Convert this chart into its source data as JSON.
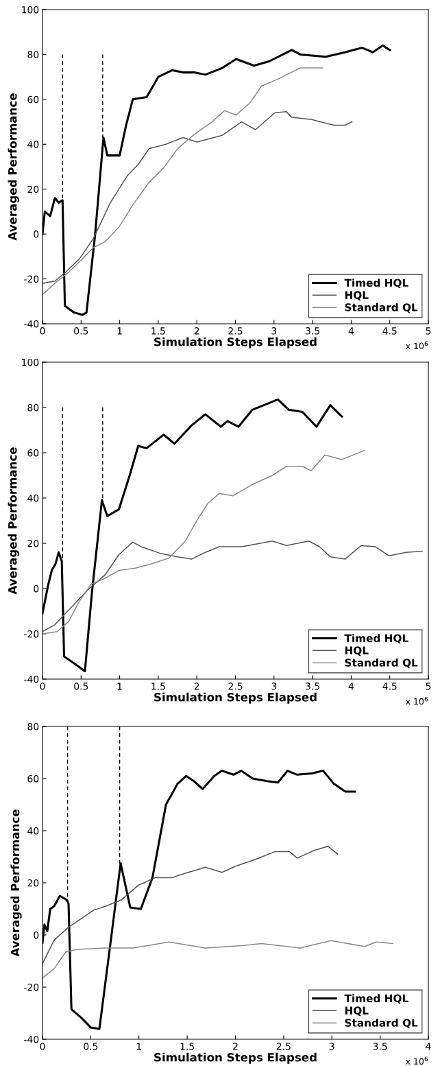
{
  "chart_data": [
    {
      "type": "line",
      "xlabel": "Simulation Steps Elapsed",
      "ylabel": "Averaged Performance",
      "annotations": [
        "x 10$^{6}$"
      ],
      "xlim": [
        0,
        5
      ],
      "xticks": [
        0,
        0.5,
        1,
        1.5,
        2,
        2.5,
        3,
        3.5,
        4,
        4.5,
        5
      ],
      "ylim": [
        -40,
        100
      ],
      "yticks": [
        -40,
        -20,
        0,
        20,
        40,
        60,
        80,
        100
      ],
      "grid": false,
      "legend": "bottom right",
      "marker": "none",
      "series": [
        {
          "name": "Timed HQL",
          "color": "#000000",
          "x": [
            0,
            0.03,
            0.1,
            0.16,
            0.21,
            0.26,
            0.29,
            0.41,
            0.52,
            0.57,
            0.68,
            0.79,
            0.84,
            0.92,
            1.0,
            1.08,
            1.17,
            1.35,
            1.5,
            1.68,
            1.82,
            1.97,
            2.11,
            2.33,
            2.51,
            2.74,
            2.94,
            3.23,
            3.34,
            3.67,
            3.92,
            4.14,
            4.28,
            4.41,
            4.5
          ],
          "values": [
            0,
            10,
            8,
            16,
            14,
            15,
            -32,
            -35,
            -36,
            -35,
            -1,
            43,
            35,
            35,
            35,
            48,
            60,
            61,
            70,
            73,
            72,
            72,
            71,
            74,
            78,
            75,
            77,
            82,
            80,
            79,
            81,
            83,
            81,
            84,
            82
          ]
        },
        {
          "name": "HQL",
          "color": "#555555",
          "x": [
            0,
            0.16,
            0.3,
            0.48,
            0.66,
            0.88,
            1.1,
            1.24,
            1.38,
            1.6,
            1.82,
            2.0,
            2.33,
            2.58,
            2.76,
            3.01,
            3.16,
            3.23,
            3.49,
            3.6,
            3.78,
            3.92,
            4.01
          ],
          "values": [
            -22,
            -21,
            -17,
            -11,
            -2,
            14,
            26,
            31,
            38,
            40,
            43,
            41,
            44,
            50,
            46.5,
            54,
            54.5,
            52,
            51,
            50,
            48.5,
            48.5,
            50
          ]
        },
        {
          "name": "Standard QL",
          "color": "#8a8a8a",
          "x": [
            0,
            0.16,
            0.34,
            0.52,
            0.66,
            0.81,
            0.99,
            1.17,
            1.38,
            1.57,
            1.75,
            1.97,
            2.18,
            2.36,
            2.51,
            2.69,
            2.84,
            3.05,
            3.34,
            3.49,
            3.63
          ],
          "values": [
            -27,
            -22,
            -17,
            -11,
            -6,
            -3.5,
            3,
            13,
            23,
            29.5,
            38,
            44.5,
            49.5,
            55,
            53,
            58.5,
            66,
            69,
            74,
            74,
            74
          ]
        },
        {
          "color": "#000000",
          "line_style": "dashed",
          "x": [
            0.26,
            0.26
          ],
          "values": [
            80,
            15
          ]
        },
        {
          "color": "#000000",
          "line_style": "dashed",
          "x": [
            0.78,
            0.78
          ],
          "values": [
            80,
            43
          ]
        }
      ]
    },
    {
      "type": "line",
      "xlabel": "Simulation Steps Elapsed",
      "ylabel": "Averaged Performance",
      "annotations": [
        "x 10$^{6}$"
      ],
      "xlim": [
        0,
        5
      ],
      "xticks": [
        0,
        0.5,
        1,
        1.5,
        2,
        2.5,
        3,
        3.5,
        4,
        4.5,
        5
      ],
      "ylim": [
        -40,
        100
      ],
      "yticks": [
        -40,
        -20,
        0,
        20,
        40,
        60,
        80,
        100
      ],
      "grid": false,
      "legend": "bottom right",
      "marker": "none",
      "series": [
        {
          "name": "Timed HQL",
          "color": "#000000",
          "x": [
            0,
            0.07,
            0.12,
            0.17,
            0.21,
            0.25,
            0.28,
            0.41,
            0.55,
            0.64,
            0.77,
            0.84,
            0.99,
            1.13,
            1.24,
            1.35,
            1.57,
            1.71,
            1.93,
            2.11,
            2.31,
            2.4,
            2.54,
            2.72,
            3.05,
            3.19,
            3.37,
            3.55,
            3.73,
            3.88
          ],
          "values": [
            -11,
            1,
            8,
            11,
            16,
            12,
            -30,
            -33,
            -36.5,
            -2,
            39,
            32,
            35,
            50,
            63,
            62,
            68,
            64,
            72,
            77,
            71.5,
            74,
            71.5,
            79,
            83.5,
            79,
            78,
            71.5,
            81,
            76
          ]
        },
        {
          "name": "HQL",
          "color": "#555555",
          "x": [
            0,
            0.16,
            0.34,
            0.59,
            0.81,
            0.99,
            1.17,
            1.28,
            1.53,
            1.75,
            1.93,
            2.11,
            2.29,
            2.58,
            2.98,
            3.16,
            3.45,
            3.59,
            3.73,
            3.92,
            4.13,
            4.31,
            4.49,
            4.71,
            4.92
          ],
          "values": [
            -19,
            -16,
            -9.5,
            -0.5,
            6,
            15,
            20.5,
            18.5,
            15.5,
            14,
            13,
            16,
            18.5,
            18.5,
            21,
            19,
            21,
            18.5,
            14,
            13,
            19,
            18.5,
            14.5,
            16,
            16.5
          ]
        },
        {
          "name": "Standard QL",
          "color": "#8a8a8a",
          "x": [
            0,
            0.19,
            0.34,
            0.48,
            0.63,
            0.81,
            0.99,
            1.2,
            1.42,
            1.64,
            1.85,
            2.0,
            2.14,
            2.29,
            2.47,
            2.72,
            2.98,
            3.16,
            3.37,
            3.48,
            3.66,
            3.88,
            4.17
          ],
          "values": [
            -20,
            -19,
            -14.5,
            -5.5,
            2,
            4.5,
            8,
            9,
            11,
            13.5,
            21,
            30,
            37.5,
            42,
            41,
            46,
            50,
            54,
            54,
            52,
            59,
            57,
            61
          ]
        },
        {
          "color": "#000000",
          "line_style": "dashed",
          "x": [
            0.26,
            0.26
          ],
          "values": [
            80,
            12
          ]
        },
        {
          "color": "#000000",
          "line_style": "dashed",
          "x": [
            0.78,
            0.78
          ],
          "values": [
            80,
            39
          ]
        }
      ]
    },
    {
      "type": "line",
      "xlabel": "Simulation Steps Elapsed",
      "ylabel": "Averaged Performance",
      "annotations": [
        "x 10$^{6}$"
      ],
      "xlim": [
        0,
        4
      ],
      "xticks": [
        0,
        0.5,
        1,
        1.5,
        2,
        2.5,
        3,
        3.5,
        4
      ],
      "ylim": [
        -40,
        80
      ],
      "yticks": [
        -40,
        -20,
        0,
        20,
        40,
        60,
        80
      ],
      "grid": false,
      "legend": "bottom right",
      "marker": "none",
      "series": [
        {
          "name": "Timed HQL",
          "color": "#000000",
          "x": [
            0,
            0.02,
            0.05,
            0.08,
            0.12,
            0.18,
            0.25,
            0.27,
            0.3,
            0.41,
            0.5,
            0.59,
            0.7,
            0.81,
            0.91,
            1.02,
            1.14,
            1.28,
            1.4,
            1.49,
            1.57,
            1.66,
            1.78,
            1.86,
            1.98,
            2.06,
            2.18,
            2.33,
            2.44,
            2.54,
            2.64,
            2.79,
            2.91,
            3.02,
            3.14,
            3.24
          ],
          "values": [
            -3,
            4,
            1.5,
            10,
            11,
            15,
            13.5,
            12,
            -28.5,
            -32,
            -35.5,
            -36,
            -4.5,
            27.5,
            10.5,
            10,
            22,
            50,
            58,
            61,
            59,
            56,
            61,
            63,
            61.5,
            63,
            60,
            59,
            58.5,
            63,
            61.5,
            62,
            63,
            58,
            55,
            55
          ]
        },
        {
          "name": "HQL",
          "color": "#555555",
          "x": [
            0,
            0.12,
            0.27,
            0.41,
            0.53,
            0.65,
            0.82,
            0.99,
            1.17,
            1.34,
            1.51,
            1.69,
            1.86,
            2.01,
            2.21,
            2.41,
            2.56,
            2.64,
            2.82,
            2.96,
            3.06
          ],
          "values": [
            -11,
            -2,
            3,
            6.5,
            9.5,
            11,
            13.5,
            19,
            22,
            22,
            24,
            26,
            24,
            26.5,
            29,
            32,
            32,
            29.5,
            32.5,
            34,
            31
          ]
        },
        {
          "name": "Standard QL",
          "color": "#8a8a8a",
          "x": [
            0,
            0.12,
            0.24,
            0.36,
            0.65,
            0.94,
            1.31,
            1.69,
            2.09,
            2.27,
            2.67,
            2.99,
            3.34,
            3.46,
            3.63
          ],
          "values": [
            -16.5,
            -13,
            -6.5,
            -5.5,
            -5,
            -5,
            -2.7,
            -5,
            -4,
            -3.3,
            -5,
            -2.2,
            -4.4,
            -2.7,
            -3.3
          ]
        },
        {
          "color": "#000000",
          "line_style": "dashed",
          "x": [
            0.26,
            0.26
          ],
          "values": [
            80,
            13
          ]
        },
        {
          "color": "#000000",
          "line_style": "dashed",
          "x": [
            0.8,
            0.8
          ],
          "values": [
            80,
            27
          ]
        }
      ]
    }
  ]
}
